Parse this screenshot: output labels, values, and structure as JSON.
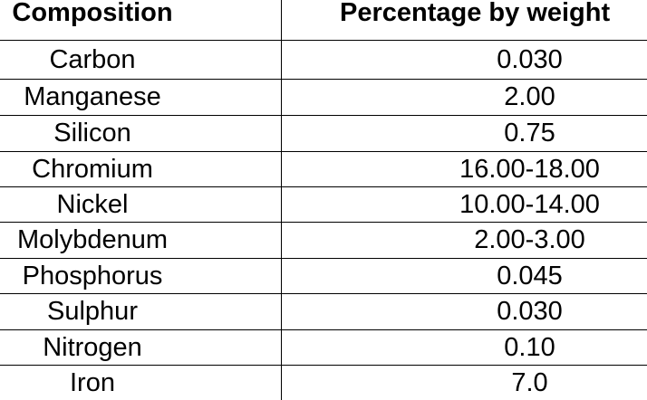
{
  "table": {
    "headers": [
      "Composition",
      "Percentage by weight"
    ],
    "rows": [
      {
        "composition": "Carbon",
        "percentage": "0.030"
      },
      {
        "composition": "Manganese",
        "percentage": "2.00"
      },
      {
        "composition": "Silicon",
        "percentage": "0.75"
      },
      {
        "composition": "Chromium",
        "percentage": "16.00-18.00"
      },
      {
        "composition": "Nickel",
        "percentage": "10.00-14.00"
      },
      {
        "composition": "Molybdenum",
        "percentage": "2.00-3.00"
      },
      {
        "composition": "Phosphorus",
        "percentage": "0.045"
      },
      {
        "composition": "Sulphur",
        "percentage": "0.030"
      },
      {
        "composition": "Nitrogen",
        "percentage": "0.10"
      },
      {
        "composition": "Iron",
        "percentage": "7.0"
      }
    ]
  }
}
